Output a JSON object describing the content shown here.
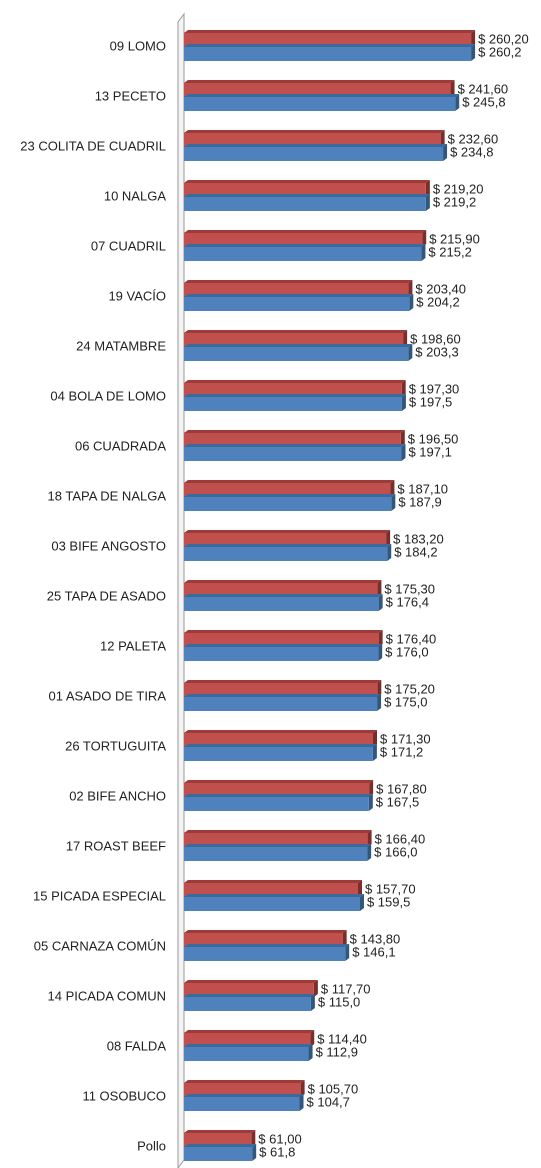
{
  "chart_data": {
    "type": "bar",
    "orientation": "horizontal",
    "categories": [
      "09 LOMO",
      "13 PECETO",
      "23 COLITA DE CUADRIL",
      "10 NALGA",
      "07 CUADRIL",
      "19 VACÍO",
      "24 MATAMBRE",
      "04 BOLA DE LOMO",
      "06 CUADRADA",
      "18 TAPA DE NALGA",
      "03 BIFE ANGOSTO",
      "25 TAPA DE ASADO",
      "12 PALETA",
      "01 ASADO DE TIRA",
      "26 TORTUGUITA",
      "02 BIFE ANCHO",
      "17 ROAST BEEF",
      "15 PICADA ESPECIAL",
      "05 CARNAZA COMÚN",
      "14 PICADA COMUN",
      "08 FALDA",
      "11 OSOBUCO",
      "Pollo"
    ],
    "series": [
      {
        "color": "#c0504d",
        "values": [
          260.2,
          241.6,
          232.6,
          219.2,
          215.9,
          203.4,
          198.6,
          197.3,
          196.5,
          187.1,
          183.2,
          175.3,
          176.4,
          175.2,
          171.3,
          167.8,
          166.4,
          157.7,
          143.8,
          117.7,
          114.4,
          105.7,
          61.0
        ],
        "value_labels": [
          "$ 260,20",
          "$ 241,60",
          "$ 232,60",
          "$ 219,20",
          "$ 215,90",
          "$ 203,40",
          "$ 198,60",
          "$ 197,30",
          "$ 196,50",
          "$ 187,10",
          "$ 183,20",
          "$ 175,30",
          "$ 176,40",
          "$ 175,20",
          "$ 171,30",
          "$ 167,80",
          "$ 166,40",
          "$ 157,70",
          "$ 143,80",
          "$ 117,70",
          "$ 114,40",
          "$ 105,70",
          "$ 61,00"
        ]
      },
      {
        "color": "#4f81bd",
        "values": [
          260.2,
          245.8,
          234.8,
          219.2,
          215.2,
          204.2,
          203.3,
          197.5,
          197.1,
          187.9,
          184.2,
          176.4,
          176.0,
          175.0,
          171.2,
          167.5,
          166.0,
          159.5,
          146.1,
          115.0,
          112.9,
          104.7,
          61.8
        ],
        "value_labels": [
          "$ 260,2",
          "$ 245,8",
          "$ 234,8",
          "$ 219,2",
          "$ 215,2",
          "$ 204,2",
          "$ 203,3",
          "$ 197,5",
          "$ 197,1",
          "$ 187,9",
          "$ 184,2",
          "$ 176,4",
          "$ 176,0",
          "$ 175,0",
          "$ 171,2",
          "$ 167,5",
          "$ 166,0",
          "$ 159,5",
          "$ 146,1",
          "$ 115,0",
          "$ 112,9",
          "$ 104,7",
          "$ 61,8"
        ]
      }
    ],
    "xlim": [
      0,
      300
    ]
  }
}
